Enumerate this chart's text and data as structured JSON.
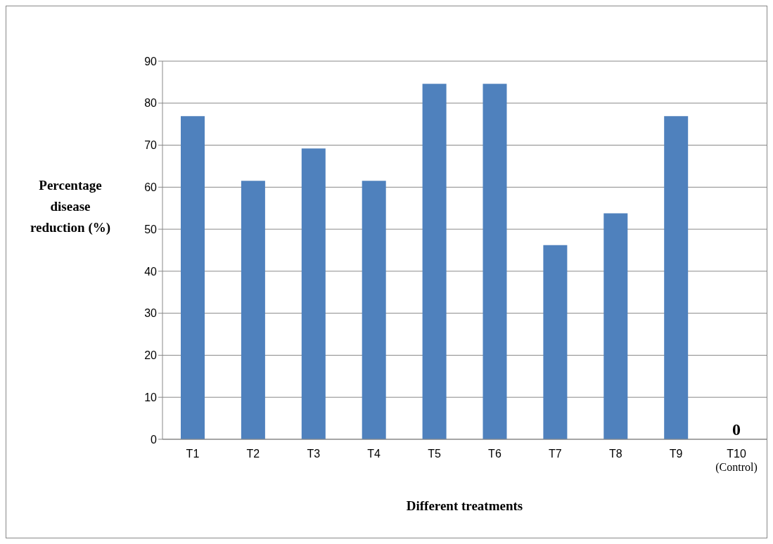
{
  "chart_data": {
    "type": "bar",
    "xlabel": "Different treatments",
    "ylabel": "Percentage disease reduction (%)",
    "categories": [
      "T1",
      "T2",
      "T3",
      "T4",
      "T5",
      "T6",
      "T7",
      "T8",
      "T9",
      "T10\n(Control)"
    ],
    "values": [
      76.9,
      61.5,
      69.2,
      61.5,
      84.6,
      84.6,
      46.2,
      53.8,
      76.9,
      0
    ],
    "color": "#4f81bd",
    "ylim": [
      0,
      90
    ],
    "yticks": [
      0,
      10,
      20,
      30,
      40,
      50,
      60,
      70,
      80,
      90
    ],
    "grid": "y",
    "annotations": [
      {
        "text": "0",
        "x": "T10\n(Control)",
        "y": 0
      }
    ]
  }
}
